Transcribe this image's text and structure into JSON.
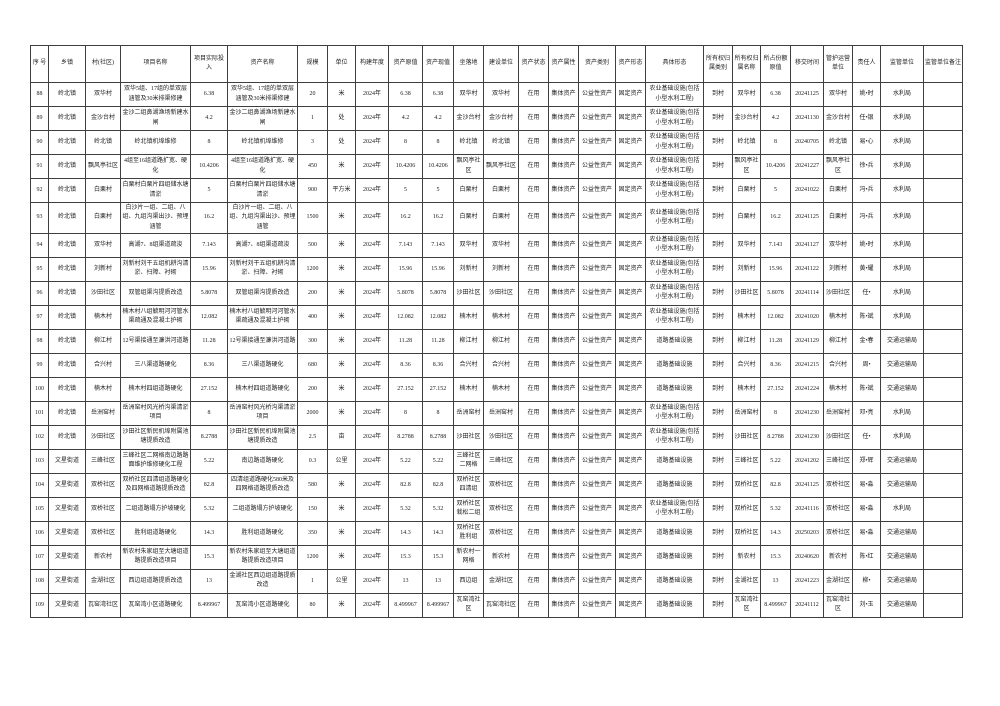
{
  "page": {
    "background_color": "#ffffff",
    "text_color": "#1c1c1c",
    "border_color": "#3f3f3f"
  },
  "table": {
    "columns": [
      "序 号",
      "乡镇",
      "村(社区)",
      "项目名称",
      "项目实际投入",
      "资产名称",
      "规模",
      "单位",
      "构建年度",
      "资产原值",
      "资产现值",
      "坐落地",
      "建设单位",
      "资产状态",
      "资产属性",
      "资产类别",
      "资产形态",
      "具体形态",
      "所有权归属类别",
      "所有权归属名称",
      "所占份额原值",
      "移交时间",
      "管护运营单位",
      "责任人",
      "监管单位",
      "监管单位备注"
    ],
    "rows": [
      [
        "88",
        "岭北镇",
        "双华村",
        "双华5组、17组的单双层涵管及30米排渠修建",
        "6.38",
        "双华5组、17组的单双层涵管及30米排渠修建",
        "20",
        "米",
        "2024年",
        "6.38",
        "6.38",
        "双华村",
        "双华村",
        "在用",
        "集体资产",
        "公益性资产",
        "固定资产",
        "农业基础设施(包括小型水利工程)",
        "到村",
        "双华村",
        "6.38",
        "20241125",
        "双华村",
        "姚•时",
        "水利局",
        ""
      ],
      [
        "89",
        "岭北镇",
        "金沙台村",
        "金沙二组鼻湖渔场新建水闸",
        "4.2",
        "金沙二组鼻湖渔场新建水闸",
        "1",
        "处",
        "2024年",
        "4.2",
        "4.2",
        "金沙台村",
        "金沙台村",
        "在用",
        "集体资产",
        "公益性资产",
        "固定资产",
        "农业基础设施(包括小型水利工程)",
        "到村",
        "金沙台村",
        "4.2",
        "20241130",
        "金沙台村",
        "任•银",
        "水利局",
        ""
      ],
      [
        "90",
        "岭北镇",
        "岭北镇",
        "岭北镇机埠维修",
        "8",
        "岭北镇机埠维修",
        "3",
        "处",
        "2024年",
        "8",
        "8",
        "岭北镇",
        "岭北镇",
        "在用",
        "集体资产",
        "公益性资产",
        "固定资产",
        "农业基础设施(包括小型水利工程)",
        "到村",
        "岭北镇",
        "8",
        "20240705",
        "岭北镇",
        "易•心",
        "水利局",
        ""
      ],
      [
        "91",
        "岭北镇",
        "飘风亭社区",
        "4组至16组道路扩宽、硬化",
        "10.4206",
        "4组至16组道路扩宽、硬化",
        "450",
        "米",
        "2024年",
        "10.4206",
        "10.4206",
        "飘风亭社区",
        "飘风亭社区",
        "在用",
        "集体资产",
        "公益性资产",
        "固定资产",
        "农业基础设施(包括小型水利工程)",
        "到村",
        "飘风亭社区",
        "10.4206",
        "20241227",
        "飘风亭社区",
        "徐•兵",
        "水利局",
        ""
      ],
      [
        "92",
        "岭北镇",
        "白栗村",
        "白栗村白栗片四组储水塘清淤",
        "5",
        "白栗村白栗片四组储水塘清淤",
        "900",
        "平方米",
        "2024年",
        "5",
        "5",
        "白栗村",
        "白栗村",
        "在用",
        "集体资产",
        "公益性资产",
        "固定资产",
        "农业基础设施(包括小型水利工程)",
        "到村",
        "白栗村",
        "5",
        "20241022",
        "白栗村",
        "冯•兵",
        "水利局",
        ""
      ],
      [
        "93",
        "岭北镇",
        "白栗村",
        "白沙片一组、二组、八组、九组沟渠出沙、预埋涵管",
        "16.2",
        "白沙片一组、二组、八组、九组沟渠出沙、预埋涵管",
        "1500",
        "米",
        "2024年",
        "16.2",
        "16.2",
        "白栗村",
        "白栗村",
        "在用",
        "集体资产",
        "公益性资产",
        "固定资产",
        "农业基础设施(包括小型水利工程)",
        "到村",
        "白栗村",
        "16.2",
        "20241125",
        "白栗村",
        "冯•兵",
        "水利局",
        ""
      ],
      [
        "94",
        "岭北镇",
        "双华村",
        "高湖7、8组渠道疏浚",
        "7.143",
        "高湖7、8组渠道疏浚",
        "500",
        "米",
        "2024年",
        "7.143",
        "7.143",
        "双华村",
        "双华村",
        "在用",
        "集体资产",
        "公益性资产",
        "固定资产",
        "农业基础设施(包括小型水利工程)",
        "到村",
        "双华村",
        "7.143",
        "20241127",
        "双华村",
        "姚•时",
        "水利局",
        ""
      ],
      [
        "95",
        "岭北镇",
        "刘新村",
        "刘新村刘干五组机耕沟清淤、扫障、衬砌",
        "15.96",
        "刘新村刘干五组机耕沟清淤、扫障、衬砌",
        "1200",
        "米",
        "2024年",
        "15.96",
        "15.96",
        "刘新村",
        "刘新村",
        "在用",
        "集体资产",
        "公益性资产",
        "固定资产",
        "农业基础设施(包括小型水利工程)",
        "到村",
        "刘新村",
        "15.96",
        "20241122",
        "刘新村",
        "黄•耀",
        "水利局",
        ""
      ],
      [
        "96",
        "岭北镇",
        "沙田社区",
        "双管组渠沟提质改造",
        "5.8078",
        "双管组渠沟提质改造",
        "200",
        "米",
        "2024年",
        "5.8078",
        "5.8078",
        "沙田社区",
        "沙田社区",
        "在用",
        "集体资产",
        "公益性资产",
        "固定资产",
        "农业基础设施(包括小型水利工程)",
        "到村",
        "沙田社区",
        "5.8078",
        "20241114",
        "沙田社区",
        "任•",
        "水利局",
        ""
      ],
      [
        "97",
        "岭北镇",
        "楠木村",
        "楠木村八组毓明河河管水渠疏通及混凝土护砌",
        "12.082",
        "楠木村八组毓明河河管水渠疏通及混凝土护砌",
        "400",
        "米",
        "2024年",
        "12.082",
        "12.082",
        "楠木村",
        "楠木村",
        "在用",
        "集体资产",
        "公益性资产",
        "固定资产",
        "农业基础设施(包括小型水利工程)",
        "到村",
        "楠木村",
        "12.082",
        "20241020",
        "楠木村",
        "陈•斌",
        "水利局",
        ""
      ],
      [
        "98",
        "岭北镇",
        "柳江村",
        "12号渠接通至濂洪河道路",
        "11.28",
        "12号渠接通至濂洪河道路",
        "300",
        "米",
        "2024年",
        "11.28",
        "11.28",
        "柳江村",
        "柳江村",
        "在用",
        "集体资产",
        "公益性资产",
        "固定资产",
        "道路基础设施",
        "到村",
        "柳江村",
        "11.28",
        "20241129",
        "柳江村",
        "金•春",
        "交通运输局",
        ""
      ],
      [
        "99",
        "岭北镇",
        "合兴村",
        "三八渠道路硬化",
        "8.36",
        "三八渠道路硬化",
        "680",
        "米",
        "2024年",
        "8.36",
        "8.36",
        "合兴村",
        "合兴村",
        "在用",
        "集体资产",
        "公益性资产",
        "固定资产",
        "道路基础设施",
        "到村",
        "合兴村",
        "8.36",
        "20241215",
        "合兴村",
        "周•",
        "交通运输局",
        ""
      ],
      [
        "100",
        "岭北镇",
        "楠木村",
        "楠木村四组道路硬化",
        "27.152",
        "楠木村四组道路硬化",
        "200",
        "米",
        "2024年",
        "27.152",
        "27.152",
        "楠木村",
        "楠木村",
        "在用",
        "集体资产",
        "公益性资产",
        "固定资产",
        "道路基础设施",
        "到村",
        "楠木村",
        "27.152",
        "20241224",
        "楠木村",
        "陈•斌",
        "交通运输局",
        ""
      ],
      [
        "101",
        "岭北镇",
        "岳洲窑村",
        "岳洲窑村风光桥沟渠清淤项目",
        "8",
        "岳洲窑村风光桥沟渠清淤项目",
        "2000",
        "米",
        "2024年",
        "8",
        "8",
        "岳洲窑村",
        "岳洲窑村",
        "在用",
        "集体资产",
        "公益性资产",
        "固定资产",
        "农业基础设施(包括小型水利工程)",
        "到村",
        "岳洲窑村",
        "8",
        "20241230",
        "岳洲窑村",
        "邓•亮",
        "水利局",
        ""
      ],
      [
        "102",
        "岭北镇",
        "沙田社区",
        "沙田社区新民机埠附属池塘提质改造",
        "8.2788",
        "沙田社区新民机埠附属池塘提质改造",
        "2.5",
        "亩",
        "2024年",
        "8.2788",
        "8.2788",
        "沙田社区",
        "沙田社区",
        "在用",
        "集体资产",
        "公益性资产",
        "固定资产",
        "农业基础设施(包括小型水利工程)",
        "到村",
        "沙田社区",
        "8.2788",
        "20241230",
        "沙田社区",
        "任•",
        "水利局",
        ""
      ],
      [
        "103",
        "文星街道",
        "三峰社区",
        "三峰社区二网格南边路路面维护维修硬化工程",
        "5.22",
        "南边路道路硬化",
        "0.3",
        "公里",
        "2024年",
        "5.22",
        "5.22",
        "三峰社区二网格",
        "三峰社区",
        "在用",
        "集体资产",
        "公益性资产",
        "固定资产",
        "道路基础设施",
        "到村",
        "三峰社区",
        "5.22",
        "20241202",
        "三峰社区",
        "郑•辉",
        "交通运输局",
        ""
      ],
      [
        "104",
        "文星街道",
        "双桥社区",
        "双桥社区四清组道路硬化及四网格道路提质改造",
        "82.8",
        "四清组道路硬化580米及四网格道路提质改造",
        "580",
        "米",
        "2024年",
        "82.8",
        "82.8",
        "双桥社区四清组",
        "双桥社区",
        "在用",
        "集体资产",
        "公益性资产",
        "固定资产",
        "道路基础设施",
        "到村",
        "双桥社区",
        "82.8",
        "20241125",
        "双桥社区",
        "易•淼",
        "交通运输局",
        ""
      ],
      [
        "105",
        "文星街道",
        "双桥社区",
        "二组道路塌方护坡硬化",
        "5.32",
        "二组道路塌方护坡硬化",
        "150",
        "米",
        "2024年",
        "5.32",
        "5.32",
        "双桥社区栽松二组",
        "双桥社区",
        "在用",
        "集体资产",
        "公益性资产",
        "固定资产",
        "农业基础设施(包括小型水利工程)",
        "到村",
        "双桥社区",
        "5.32",
        "20241116",
        "双桥社区",
        "易•淼",
        "水利局",
        ""
      ],
      [
        "106",
        "文星街道",
        "双桥社区",
        "胜利组道路硬化",
        "14.3",
        "胜利组道路硬化",
        "350",
        "米",
        "2024年",
        "14.3",
        "14.3",
        "双桥社区胜利组",
        "双桥社区",
        "在用",
        "集体资产",
        "公益性资产",
        "固定资产",
        "道路基础设施",
        "到村",
        "双桥社区",
        "14.3",
        "20250203",
        "双桥社区",
        "易•淼",
        "交通运输局",
        ""
      ],
      [
        "107",
        "文星街道",
        "新农村",
        "新农村朱家组至大塘组道路提质改造项目",
        "15.3",
        "新农村朱家组至大塘组道路提质改造项目",
        "1200",
        "米",
        "2024年",
        "15.3",
        "15.3",
        "新农村一网格",
        "新农村",
        "在用",
        "集体资产",
        "公益性资产",
        "固定资产",
        "道路基础设施",
        "到村",
        "新农村",
        "15.3",
        "20240620",
        "新农村",
        "陈•红",
        "交通运输局",
        ""
      ],
      [
        "108",
        "文星街道",
        "金湖社区",
        "西边组道路提质改造",
        "13",
        "金湖社区西边组道路提质改造",
        "1",
        "公里",
        "2024年",
        "13",
        "13",
        "西边组",
        "金湖社区",
        "在用",
        "集体资产",
        "公益性资产",
        "固定资产",
        "道路基础设施",
        "到村",
        "金湖社区",
        "13",
        "20241223",
        "金湖社区",
        "柳•",
        "交通运输局",
        ""
      ],
      [
        "109",
        "文星街道",
        "瓦窑湾社区",
        "瓦窑湾小区道路硬化",
        "8.499967",
        "瓦窑湾小区道路硬化",
        "80",
        "米",
        "2024年",
        "8.499967",
        "8.499967",
        "瓦窑湾社区",
        "瓦窑湾社区",
        "在用",
        "集体资产",
        "公益性资产",
        "固定资产",
        "道路基础设施",
        "到村",
        "瓦窑湾社区",
        "8.499967",
        "20241112",
        "瓦窑湾社区",
        "刘•玉",
        "交通运输局",
        ""
      ]
    ]
  }
}
